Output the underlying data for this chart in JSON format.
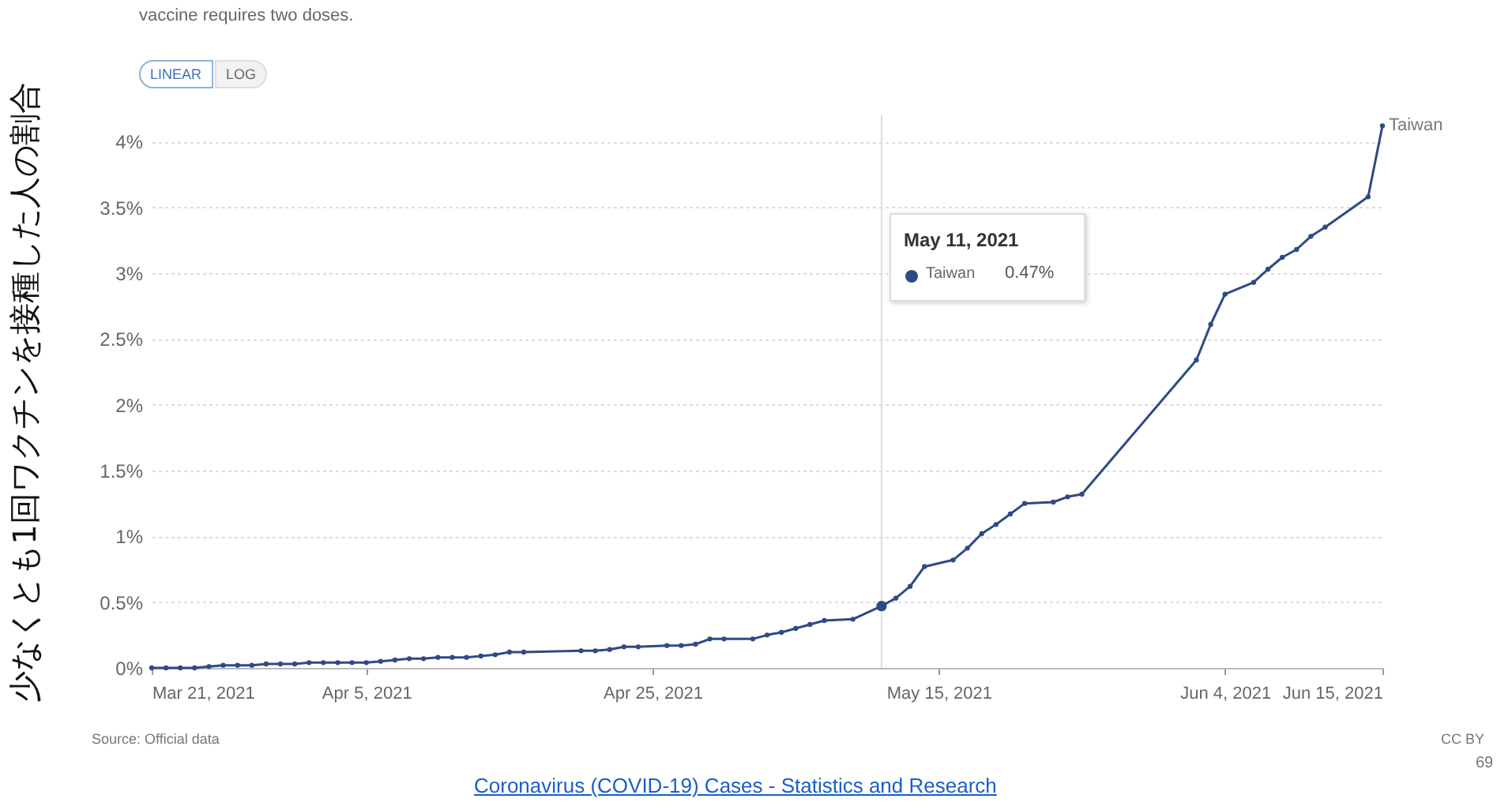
{
  "chart_data": {
    "type": "line",
    "ylabel": "少なくとも1回ワクチンを接種した人の割合",
    "annotations": [
      "vaccine requires two doses.",
      "LINEAR",
      "LOG",
      "May 11, 2021",
      "0.47%",
      "Source: Official data",
      "CC BY",
      "Coronavirus (COVID-19) Cases - Statistics and Research",
      "69"
    ],
    "x": [
      "2021-03-21",
      "2021-03-22",
      "2021-03-23",
      "2021-03-24",
      "2021-03-25",
      "2021-03-26",
      "2021-03-27",
      "2021-03-28",
      "2021-03-29",
      "2021-03-30",
      "2021-03-31",
      "2021-04-01",
      "2021-04-02",
      "2021-04-03",
      "2021-04-04",
      "2021-04-05",
      "2021-04-06",
      "2021-04-07",
      "2021-04-08",
      "2021-04-09",
      "2021-04-10",
      "2021-04-11",
      "2021-04-12",
      "2021-04-13",
      "2021-04-14",
      "2021-04-15",
      "2021-04-16",
      "2021-04-20",
      "2021-04-21",
      "2021-04-22",
      "2021-04-23",
      "2021-04-24",
      "2021-04-26",
      "2021-04-27",
      "2021-04-28",
      "2021-04-29",
      "2021-04-30",
      "2021-05-02",
      "2021-05-03",
      "2021-05-04",
      "2021-05-05",
      "2021-05-06",
      "2021-05-07",
      "2021-05-09",
      "2021-05-11",
      "2021-05-12",
      "2021-05-13",
      "2021-05-14",
      "2021-05-16",
      "2021-05-17",
      "2021-05-18",
      "2021-05-19",
      "2021-05-20",
      "2021-05-21",
      "2021-05-23",
      "2021-05-24",
      "2021-05-25",
      "2021-06-02",
      "2021-06-03",
      "2021-06-04",
      "2021-06-06",
      "2021-06-07",
      "2021-06-08",
      "2021-06-09",
      "2021-06-10",
      "2021-06-11",
      "2021-06-14",
      "2021-06-15"
    ],
    "series": [
      {
        "name": "Taiwan",
        "color": "#2f4b85",
        "values": [
          0,
          0,
          0,
          0,
          0.01,
          0.02,
          0.02,
          0.02,
          0.03,
          0.03,
          0.03,
          0.04,
          0.04,
          0.04,
          0.04,
          0.04,
          0.05,
          0.06,
          0.07,
          0.07,
          0.08,
          0.08,
          0.08,
          0.09,
          0.1,
          0.12,
          0.12,
          0.13,
          0.13,
          0.14,
          0.16,
          0.16,
          0.17,
          0.17,
          0.18,
          0.22,
          0.22,
          0.22,
          0.25,
          0.27,
          0.3,
          0.33,
          0.36,
          0.37,
          0.47,
          0.53,
          0.62,
          0.77,
          0.82,
          0.91,
          1.02,
          1.09,
          1.17,
          1.25,
          1.26,
          1.3,
          1.32,
          2.34,
          2.61,
          2.84,
          2.93,
          3.03,
          3.12,
          3.18,
          3.28,
          3.35,
          3.58,
          4.12
        ]
      }
    ],
    "xlim": [
      "2021-03-21",
      "2021-06-15"
    ],
    "xticks": [
      {
        "value": "2021-03-21",
        "label": "Mar 21, 2021"
      },
      {
        "value": "2021-04-05",
        "label": "Apr 5, 2021"
      },
      {
        "value": "2021-04-25",
        "label": "Apr 25, 2021"
      },
      {
        "value": "2021-05-15",
        "label": "May 15, 2021"
      },
      {
        "value": "2021-06-04",
        "label": "Jun 4, 2021"
      },
      {
        "value": "2021-06-15",
        "label": "Jun 15, 2021"
      }
    ],
    "ylim": [
      0,
      4.2
    ],
    "yticks": [
      {
        "value": 0,
        "label": "0%"
      },
      {
        "value": 0.5,
        "label": "0.5%"
      },
      {
        "value": 1,
        "label": "1%"
      },
      {
        "value": 1.5,
        "label": "1.5%"
      },
      {
        "value": 2,
        "label": "2%"
      },
      {
        "value": 2.5,
        "label": "2.5%"
      },
      {
        "value": 3,
        "label": "3%"
      },
      {
        "value": 3.5,
        "label": "3.5%"
      },
      {
        "value": 4,
        "label": "4%"
      }
    ],
    "ref_lines": [
      {
        "axis": "x",
        "value": "2021-05-11",
        "color": "#dddddd"
      }
    ],
    "grid": "y",
    "marker": "circle",
    "line_style": "solid"
  }
}
